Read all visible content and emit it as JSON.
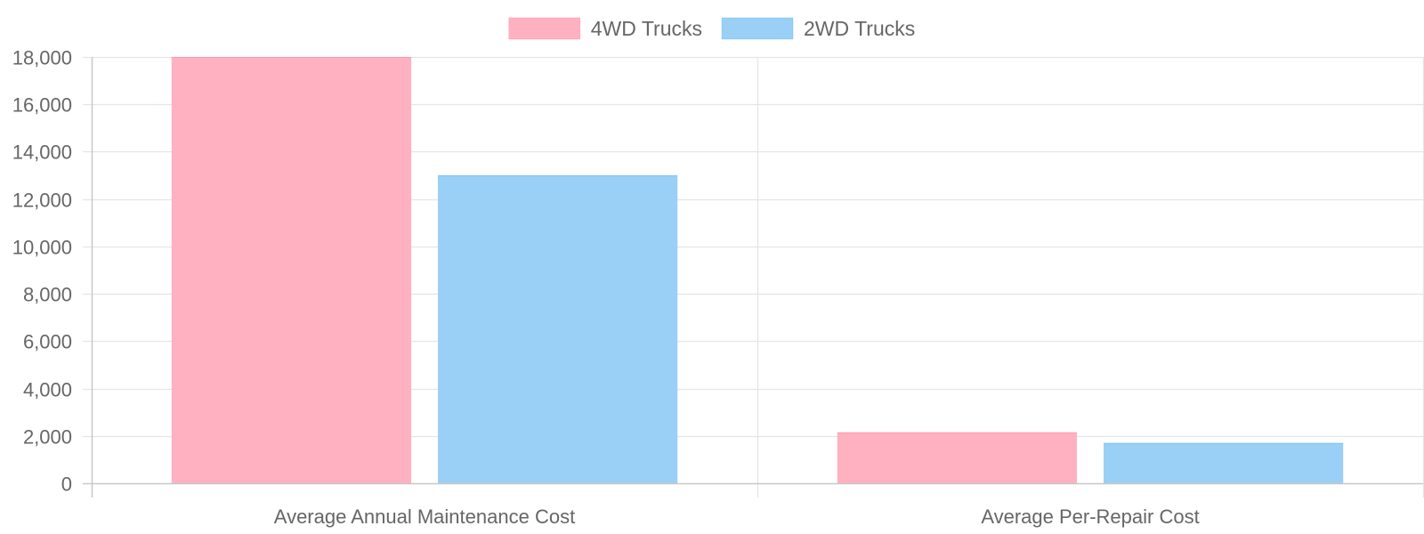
{
  "chart_data": {
    "type": "bar",
    "categories": [
      "Average Annual Maintenance Cost",
      "Average Per-Repair Cost"
    ],
    "series": [
      {
        "name": "4WD Trucks",
        "values": [
          18000,
          2150
        ],
        "fill": "#ffb1c1",
        "stroke": "#ff6384"
      },
      {
        "name": "2WD Trucks",
        "values": [
          13000,
          1700
        ],
        "fill": "#9ad0f5",
        "stroke": "#36a2eb"
      }
    ],
    "ylim": [
      0,
      18000
    ],
    "y_ticks": [
      0,
      2000,
      4000,
      6000,
      8000,
      10000,
      12000,
      14000,
      16000,
      18000
    ],
    "y_tick_labels": [
      "0",
      "2,000",
      "4,000",
      "6,000",
      "8,000",
      "10,000",
      "12,000",
      "14,000",
      "16,000",
      "18,000"
    ],
    "grid": true,
    "legend_position": "top",
    "grid_color": "#e5e5e5",
    "axis_color": "#c8c8c8",
    "text_color": "#666666"
  }
}
